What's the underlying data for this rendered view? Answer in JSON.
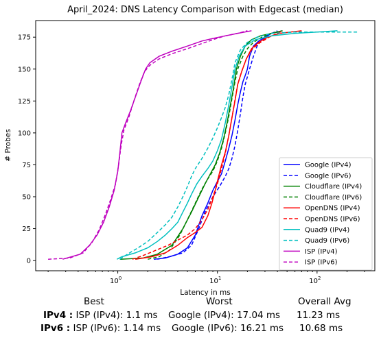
{
  "chart_data": {
    "type": "line",
    "title": "April_2024: DNS Latency Comparison with Edgecast (median)",
    "xlabel": "Latency in ms",
    "ylabel": "# Probes",
    "xscale": "log",
    "xlim": [
      0.15,
      380
    ],
    "ylim": [
      -8,
      188
    ],
    "xticks": [
      {
        "value": 1,
        "label": "10",
        "sup": "0"
      },
      {
        "value": 10,
        "label": "10",
        "sup": "1"
      },
      {
        "value": 100,
        "label": "10",
        "sup": "2"
      }
    ],
    "yticks": [
      0,
      25,
      50,
      75,
      100,
      125,
      150,
      175
    ],
    "legend_position": "lower-right",
    "series": [
      {
        "name": "Google (IPv4)",
        "color": "#0000ff",
        "dash": "solid",
        "points": [
          [
            2.3,
            1
          ],
          [
            3,
            2
          ],
          [
            4,
            5
          ],
          [
            5,
            10
          ],
          [
            6,
            20
          ],
          [
            7,
            35
          ],
          [
            8,
            45
          ],
          [
            9,
            55
          ],
          [
            10,
            62
          ],
          [
            11,
            68
          ],
          [
            12,
            78
          ],
          [
            13,
            88
          ],
          [
            14,
            98
          ],
          [
            15,
            110
          ],
          [
            16,
            122
          ],
          [
            17,
            132
          ],
          [
            18,
            140
          ],
          [
            19,
            145
          ],
          [
            20,
            150
          ],
          [
            21,
            160
          ],
          [
            23,
            168
          ],
          [
            26,
            172
          ],
          [
            30,
            175
          ],
          [
            35,
            178
          ],
          [
            45,
            180
          ]
        ]
      },
      {
        "name": "Google (IPv6)",
        "color": "#0000ff",
        "dash": "dashed",
        "points": [
          [
            2.5,
            1
          ],
          [
            3.3,
            3
          ],
          [
            4.5,
            6
          ],
          [
            5.5,
            12
          ],
          [
            6.5,
            25
          ],
          [
            7.5,
            38
          ],
          [
            9,
            50
          ],
          [
            10.5,
            58
          ],
          [
            12,
            66
          ],
          [
            13,
            72
          ],
          [
            14,
            80
          ],
          [
            15,
            90
          ],
          [
            16,
            102
          ],
          [
            17,
            115
          ],
          [
            18,
            128
          ],
          [
            19,
            138
          ],
          [
            20,
            144
          ],
          [
            21,
            150
          ],
          [
            23,
            160
          ],
          [
            25,
            168
          ],
          [
            28,
            173
          ],
          [
            33,
            177
          ],
          [
            40,
            180
          ]
        ]
      },
      {
        "name": "Cloudflare (IPv4)",
        "color": "#008000",
        "dash": "solid",
        "points": [
          [
            1.05,
            1
          ],
          [
            1.8,
            2
          ],
          [
            2.5,
            5
          ],
          [
            3.5,
            12
          ],
          [
            4.5,
            25
          ],
          [
            5.5,
            38
          ],
          [
            6.5,
            50
          ],
          [
            7.5,
            60
          ],
          [
            8.5,
            68
          ],
          [
            9.5,
            75
          ],
          [
            10.5,
            84
          ],
          [
            11.5,
            95
          ],
          [
            12.5,
            108
          ],
          [
            13.5,
            122
          ],
          [
            14.5,
            135
          ],
          [
            15.5,
            150
          ],
          [
            17,
            160
          ],
          [
            19,
            168
          ],
          [
            22,
            173
          ],
          [
            27,
            176
          ],
          [
            35,
            178
          ],
          [
            45,
            180
          ]
        ]
      },
      {
        "name": "Cloudflare (IPv6)",
        "color": "#008000",
        "dash": "dashed",
        "points": [
          [
            2,
            1
          ],
          [
            2.6,
            3
          ],
          [
            3.3,
            8
          ],
          [
            4.2,
            20
          ],
          [
            5,
            32
          ],
          [
            6,
            45
          ],
          [
            7,
            56
          ],
          [
            8,
            64
          ],
          [
            9,
            70
          ],
          [
            10,
            78
          ],
          [
            11,
            88
          ],
          [
            12,
            100
          ],
          [
            13,
            113
          ],
          [
            14,
            127
          ],
          [
            15,
            140
          ],
          [
            16,
            150
          ],
          [
            18,
            160
          ],
          [
            20,
            166
          ],
          [
            23,
            171
          ],
          [
            28,
            175
          ],
          [
            35,
            178
          ],
          [
            45,
            180
          ]
        ]
      },
      {
        "name": "OpenDNS (IPv4)",
        "color": "#ff0000",
        "dash": "solid",
        "points": [
          [
            1.5,
            1
          ],
          [
            2.2,
            3
          ],
          [
            3,
            6
          ],
          [
            4,
            12
          ],
          [
            5,
            18
          ],
          [
            6,
            22
          ],
          [
            7,
            26
          ],
          [
            8,
            35
          ],
          [
            8.8,
            45
          ],
          [
            9.5,
            55
          ],
          [
            10.2,
            65
          ],
          [
            11,
            75
          ],
          [
            12,
            85
          ],
          [
            13,
            98
          ],
          [
            14,
            112
          ],
          [
            15,
            125
          ],
          [
            16,
            138
          ],
          [
            17.5,
            148
          ],
          [
            19.5,
            158
          ],
          [
            22,
            166
          ],
          [
            26,
            171
          ],
          [
            32,
            175
          ],
          [
            42,
            178
          ],
          [
            70,
            180
          ]
        ]
      },
      {
        "name": "OpenDNS (IPv6)",
        "color": "#ff0000",
        "dash": "dashed",
        "points": [
          [
            1.4,
            1
          ],
          [
            1.8,
            4
          ],
          [
            2.4,
            8
          ],
          [
            3.2,
            12
          ],
          [
            4,
            16
          ],
          [
            5,
            20
          ],
          [
            6,
            25
          ],
          [
            7,
            32
          ],
          [
            8,
            40
          ],
          [
            9,
            50
          ],
          [
            10,
            60
          ],
          [
            11,
            72
          ],
          [
            12,
            84
          ],
          [
            13,
            98
          ],
          [
            14,
            112
          ],
          [
            15,
            126
          ],
          [
            16,
            138
          ],
          [
            17.5,
            148
          ],
          [
            19.5,
            158
          ],
          [
            22,
            165
          ],
          [
            26,
            170
          ],
          [
            33,
            175
          ],
          [
            45,
            180
          ]
        ]
      },
      {
        "name": "Quad9 (IPv4)",
        "color": "#00bfbf",
        "dash": "solid",
        "points": [
          [
            0.98,
            1
          ],
          [
            1.1,
            3
          ],
          [
            1.5,
            6
          ],
          [
            2,
            10
          ],
          [
            2.5,
            15
          ],
          [
            3,
            20
          ],
          [
            3.5,
            25
          ],
          [
            4,
            30
          ],
          [
            4.5,
            38
          ],
          [
            5,
            45
          ],
          [
            5.5,
            52
          ],
          [
            6.2,
            60
          ],
          [
            7,
            66
          ],
          [
            8,
            72
          ],
          [
            9,
            78
          ],
          [
            10,
            86
          ],
          [
            11,
            95
          ],
          [
            12,
            108
          ],
          [
            13,
            122
          ],
          [
            14,
            136
          ],
          [
            15,
            150
          ],
          [
            16.5,
            160
          ],
          [
            19,
            168
          ],
          [
            24,
            173
          ],
          [
            35,
            176
          ],
          [
            60,
            178
          ],
          [
            100,
            179
          ],
          [
            160,
            180
          ]
        ]
      },
      {
        "name": "Quad9 (IPv6)",
        "color": "#00bfbf",
        "dash": "dashed",
        "points": [
          [
            1.05,
            1
          ],
          [
            1.25,
            5
          ],
          [
            1.6,
            10
          ],
          [
            2,
            15
          ],
          [
            2.5,
            22
          ],
          [
            3,
            28
          ],
          [
            3.5,
            34
          ],
          [
            4,
            42
          ],
          [
            4.5,
            50
          ],
          [
            5,
            58
          ],
          [
            5.5,
            66
          ],
          [
            6,
            72
          ],
          [
            7,
            80
          ],
          [
            8,
            88
          ],
          [
            9,
            96
          ],
          [
            10,
            104
          ],
          [
            11,
            112
          ],
          [
            12,
            120
          ],
          [
            13,
            130
          ],
          [
            14,
            142
          ],
          [
            15,
            155
          ],
          [
            17,
            165
          ],
          [
            20,
            171
          ],
          [
            25,
            175
          ],
          [
            35,
            178
          ],
          [
            60,
            179
          ],
          [
            120,
            179
          ],
          [
            260,
            179
          ]
        ]
      },
      {
        "name": "ISP (IPv4)",
        "color": "#bf00bf",
        "dash": "solid",
        "points": [
          [
            0.28,
            1
          ],
          [
            0.42,
            5
          ],
          [
            0.52,
            12
          ],
          [
            0.62,
            20
          ],
          [
            0.72,
            30
          ],
          [
            0.82,
            42
          ],
          [
            0.92,
            55
          ],
          [
            1.0,
            70
          ],
          [
            1.05,
            85
          ],
          [
            1.1,
            100
          ],
          [
            1.2,
            108
          ],
          [
            1.35,
            118
          ],
          [
            1.5,
            128
          ],
          [
            1.7,
            140
          ],
          [
            1.9,
            150
          ],
          [
            2.1,
            155
          ],
          [
            2.6,
            160
          ],
          [
            3.5,
            164
          ],
          [
            5,
            168
          ],
          [
            7,
            172
          ],
          [
            9,
            174
          ],
          [
            12,
            176
          ],
          [
            16,
            178
          ],
          [
            22,
            180
          ]
        ]
      },
      {
        "name": "ISP (IPv6)",
        "color": "#bf00bf",
        "dash": "dashed",
        "points": [
          [
            0.2,
            1
          ],
          [
            0.33,
            2
          ],
          [
            0.45,
            6
          ],
          [
            0.55,
            14
          ],
          [
            0.65,
            24
          ],
          [
            0.75,
            36
          ],
          [
            0.85,
            48
          ],
          [
            0.95,
            60
          ],
          [
            1.02,
            75
          ],
          [
            1.08,
            90
          ],
          [
            1.15,
            102
          ],
          [
            1.3,
            113
          ],
          [
            1.45,
            125
          ],
          [
            1.65,
            138
          ],
          [
            1.85,
            148
          ],
          [
            2.1,
            153
          ],
          [
            2.6,
            158
          ],
          [
            3.5,
            162
          ],
          [
            5,
            166
          ],
          [
            7,
            170
          ],
          [
            9,
            173
          ],
          [
            12,
            176
          ],
          [
            16,
            178
          ],
          [
            20,
            180
          ]
        ]
      }
    ]
  },
  "summary": {
    "headers": {
      "best": "Best",
      "worst": "Worst",
      "avg": "Overall Avg"
    },
    "rows": [
      {
        "label": "IPv4 :",
        "best": "ISP (IPv4): 1.1 ms",
        "worst": "Google (IPv4): 17.04 ms",
        "avg": "11.23 ms"
      },
      {
        "label": "IPv6 :",
        "best": "ISP (IPv6): 1.14 ms",
        "worst": "Google (IPv6): 16.21 ms",
        "avg": "10.68 ms"
      }
    ]
  }
}
